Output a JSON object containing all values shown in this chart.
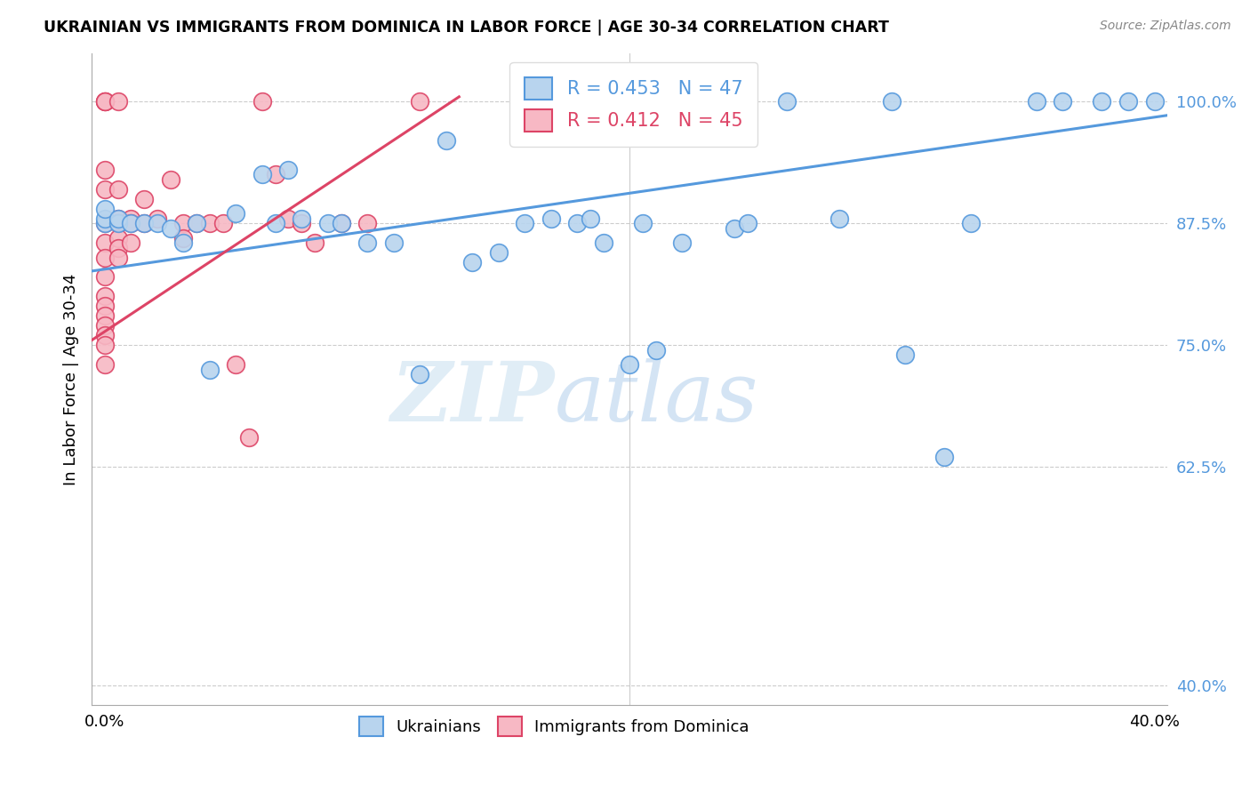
{
  "title": "UKRAINIAN VS IMMIGRANTS FROM DOMINICA IN LABOR FORCE | AGE 30-34 CORRELATION CHART",
  "source": "Source: ZipAtlas.com",
  "ylabel": "In Labor Force | Age 30-34",
  "xlim": [
    -0.005,
    0.405
  ],
  "ylim": [
    0.38,
    1.05
  ],
  "yticks": [
    0.4,
    0.625,
    0.75,
    0.875,
    1.0
  ],
  "ytick_labels": [
    "40.0%",
    "62.5%",
    "75.0%",
    "87.5%",
    "100.0%"
  ],
  "xticks": [
    0.0,
    0.05,
    0.1,
    0.15,
    0.2,
    0.25,
    0.3,
    0.35,
    0.4
  ],
  "xtick_labels": [
    "0.0%",
    "",
    "",
    "",
    "",
    "",
    "",
    "",
    "40.0%"
  ],
  "blue_R": 0.453,
  "blue_N": 47,
  "pink_R": 0.412,
  "pink_N": 45,
  "blue_color": "#b8d4ee",
  "pink_color": "#f7b8c4",
  "blue_line_color": "#5599dd",
  "pink_line_color": "#dd4466",
  "legend_blue_label": "Ukrainians",
  "legend_pink_label": "Immigrants from Dominica",
  "blue_scatter_x": [
    0.0,
    0.0,
    0.0,
    0.005,
    0.005,
    0.01,
    0.015,
    0.02,
    0.025,
    0.03,
    0.035,
    0.04,
    0.05,
    0.06,
    0.065,
    0.07,
    0.075,
    0.085,
    0.09,
    0.1,
    0.11,
    0.12,
    0.13,
    0.14,
    0.15,
    0.16,
    0.17,
    0.18,
    0.185,
    0.19,
    0.2,
    0.205,
    0.21,
    0.22,
    0.24,
    0.245,
    0.26,
    0.28,
    0.3,
    0.305,
    0.32,
    0.33,
    0.355,
    0.365,
    0.38,
    0.39,
    0.4
  ],
  "blue_scatter_y": [
    0.875,
    0.88,
    0.89,
    0.875,
    0.88,
    0.875,
    0.875,
    0.875,
    0.87,
    0.855,
    0.875,
    0.725,
    0.885,
    0.925,
    0.875,
    0.93,
    0.88,
    0.875,
    0.875,
    0.855,
    0.855,
    0.72,
    0.96,
    0.835,
    0.845,
    0.875,
    0.88,
    0.875,
    0.88,
    0.855,
    0.73,
    0.875,
    0.745,
    0.855,
    0.87,
    0.875,
    1.0,
    0.88,
    1.0,
    0.74,
    0.635,
    0.875,
    1.0,
    1.0,
    1.0,
    1.0,
    1.0
  ],
  "pink_scatter_x": [
    0.0,
    0.0,
    0.0,
    0.0,
    0.0,
    0.0,
    0.0,
    0.0,
    0.0,
    0.0,
    0.0,
    0.0,
    0.0,
    0.0,
    0.0,
    0.0,
    0.005,
    0.005,
    0.005,
    0.005,
    0.005,
    0.005,
    0.005,
    0.01,
    0.01,
    0.01,
    0.015,
    0.015,
    0.02,
    0.025,
    0.03,
    0.03,
    0.035,
    0.04,
    0.045,
    0.05,
    0.055,
    0.06,
    0.065,
    0.07,
    0.075,
    0.08,
    0.09,
    0.1,
    0.12
  ],
  "pink_scatter_y": [
    1.0,
    1.0,
    1.0,
    0.93,
    0.91,
    0.875,
    0.855,
    0.84,
    0.82,
    0.8,
    0.79,
    0.78,
    0.77,
    0.76,
    0.75,
    0.73,
    1.0,
    0.91,
    0.88,
    0.875,
    0.86,
    0.85,
    0.84,
    0.88,
    0.875,
    0.855,
    0.9,
    0.875,
    0.88,
    0.92,
    0.875,
    0.86,
    0.875,
    0.875,
    0.875,
    0.73,
    0.655,
    1.0,
    0.925,
    0.88,
    0.875,
    0.855,
    0.875,
    0.875,
    1.0
  ],
  "blue_trend_x": [
    -0.005,
    0.405
  ],
  "blue_trend_y": [
    0.826,
    0.986
  ],
  "pink_trend_x": [
    -0.005,
    0.135
  ],
  "pink_trend_y": [
    0.755,
    1.005
  ]
}
